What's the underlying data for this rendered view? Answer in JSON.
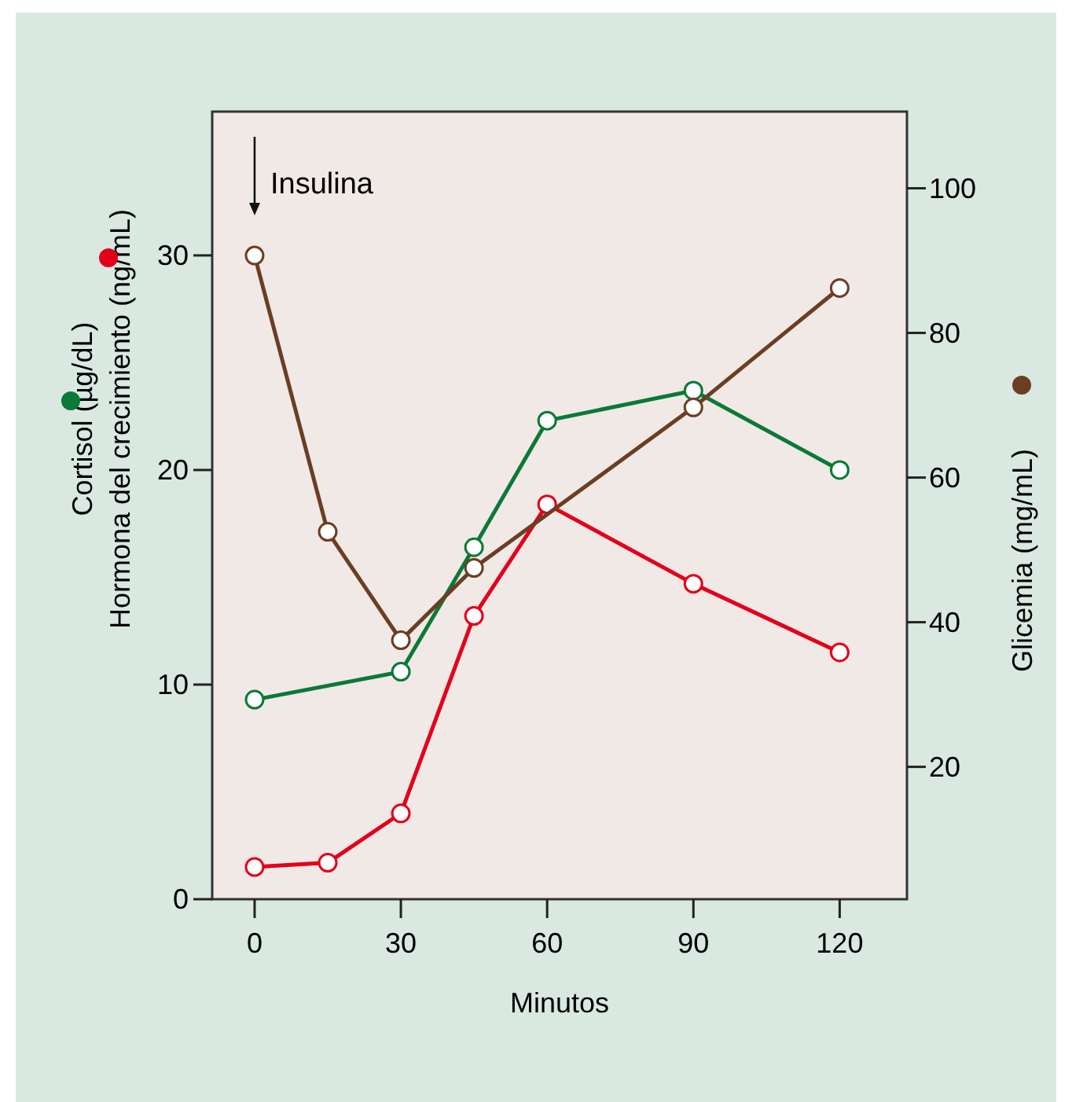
{
  "chart_data": {
    "type": "line",
    "xlabel": "Minutos",
    "ylabel": "Cortisol (µg/dL)\nHormona del crecimiento (ng/mL)",
    "y2label": "Glicemia (mg/mL)",
    "xlim": [
      -8.7,
      133.8
    ],
    "xticks": [
      0,
      30,
      60,
      90,
      120
    ],
    "ylim": [
      0,
      36.7
    ],
    "yticks": [
      0,
      10,
      20,
      30
    ],
    "y2lim": [
      1.7,
      110.6
    ],
    "y2ticks": [
      20,
      40,
      60,
      80,
      100
    ],
    "marker": "circle",
    "grid": false,
    "annotations": [
      "Insulina"
    ],
    "series": [
      {
        "color": "#0a7a36",
        "x": [
          0,
          30,
          45,
          60,
          90,
          120
        ],
        "values": [
          9.3,
          10.6,
          16.4,
          22.3,
          23.7,
          20.0
        ]
      },
      {
        "color": "#e3001b",
        "x": [
          0,
          15,
          30,
          45,
          60,
          90,
          120
        ],
        "values": [
          1.5,
          1.7,
          4.0,
          13.2,
          18.4,
          14.7,
          11.5
        ]
      },
      {
        "color": "#6b3e23",
        "axis": "y2",
        "x": [
          0,
          15,
          30,
          45,
          90,
          120
        ],
        "values": [
          90.7,
          52.5,
          37.5,
          47.5,
          69.7,
          86.2
        ]
      }
    ]
  }
}
